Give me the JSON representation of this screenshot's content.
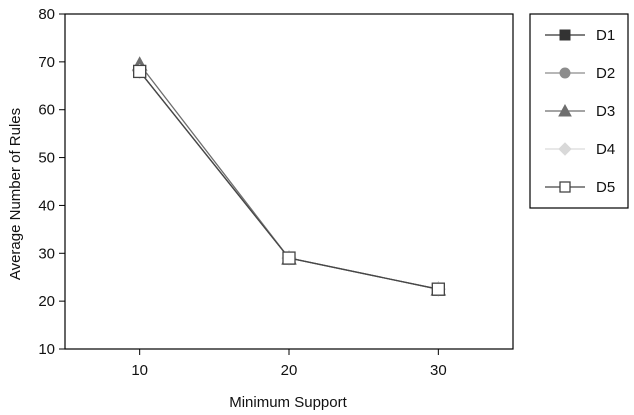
{
  "chart_data": {
    "type": "line",
    "title": "",
    "xlabel": "Minimum Support",
    "ylabel": "Average Number of Rules",
    "x": [
      10,
      20,
      30
    ],
    "x_tick_labels": [
      "10",
      "20",
      "30"
    ],
    "xlim": [
      5,
      35
    ],
    "ylim": [
      10,
      80
    ],
    "y_ticks": [
      10,
      20,
      30,
      40,
      50,
      60,
      70,
      80
    ],
    "y_tick_labels": [
      "10",
      "20",
      "30",
      "40",
      "50",
      "60",
      "70",
      "80"
    ],
    "grid": false,
    "legend_position": "right",
    "series": [
      {
        "name": "D1",
        "values": [
          68,
          29,
          22.5
        ],
        "color": "#333333",
        "marker": "filled-square"
      },
      {
        "name": "D2",
        "values": [
          68,
          29,
          22.5
        ],
        "color": "#8c8c8c",
        "marker": "filled-circle"
      },
      {
        "name": "D3",
        "values": [
          69.5,
          29,
          22.5
        ],
        "color": "#6e6e6e",
        "marker": "filled-triangle"
      },
      {
        "name": "D4",
        "values": [
          68,
          29,
          22.5
        ],
        "color": "#d9d9d9",
        "marker": "filled-diamond"
      },
      {
        "name": "D5",
        "values": [
          68,
          29,
          22.5
        ],
        "color": "#444444",
        "marker": "open-square"
      }
    ]
  }
}
